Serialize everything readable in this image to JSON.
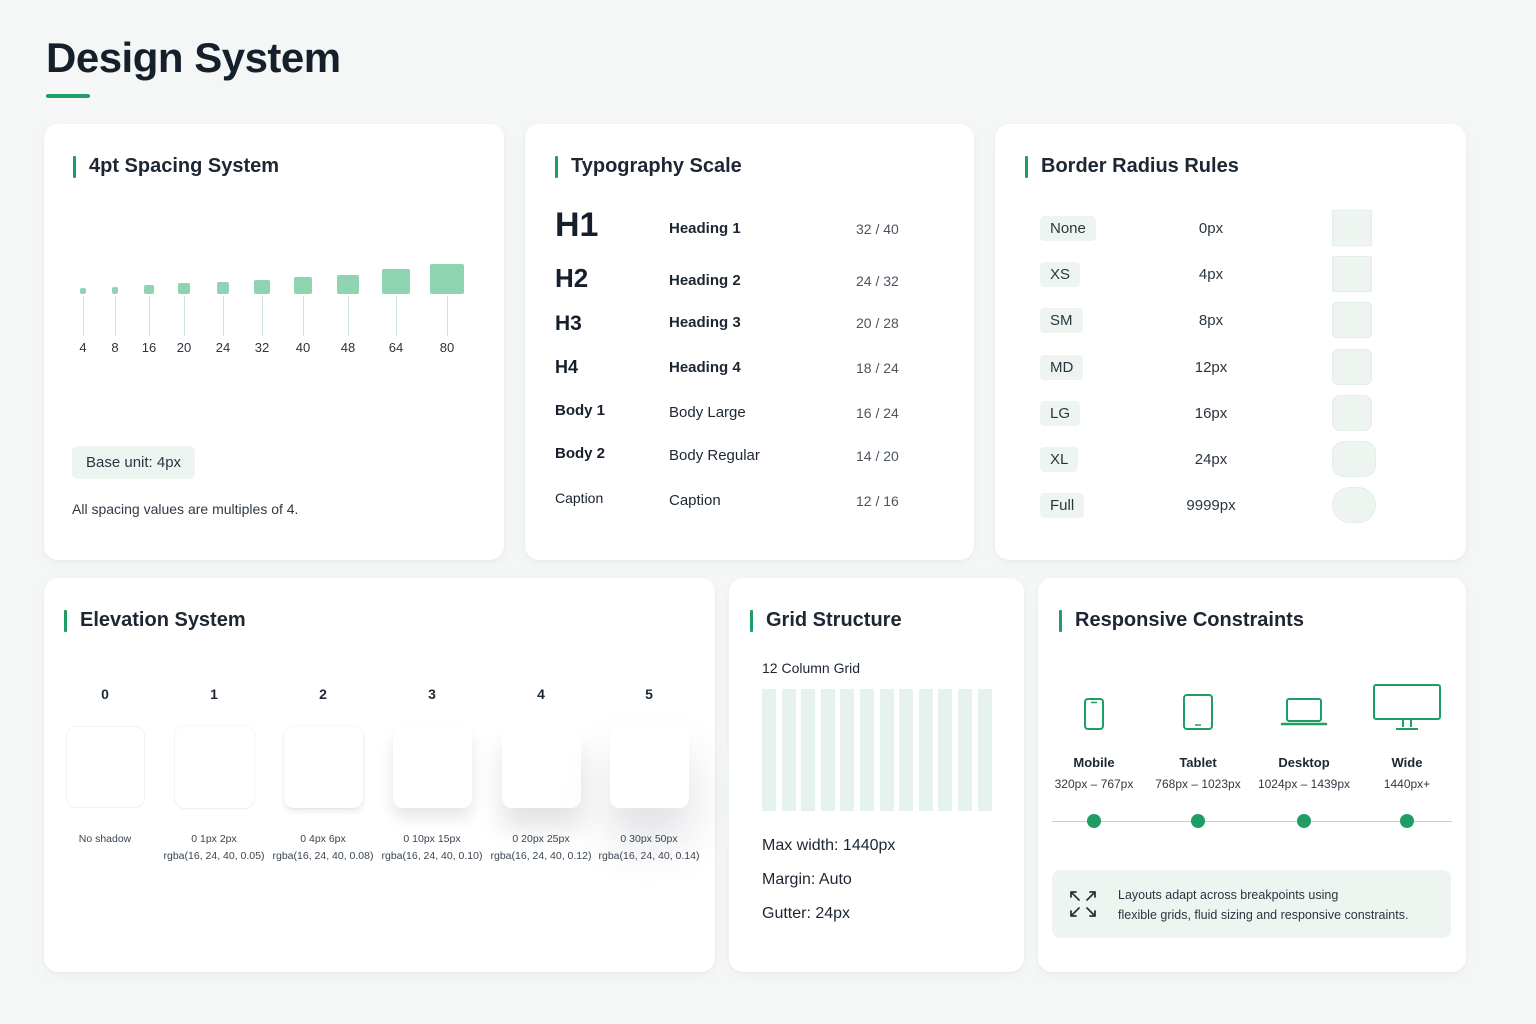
{
  "page": {
    "title": "Design System"
  },
  "spacing": {
    "title": "4pt Spacing System",
    "values": [
      "4",
      "8",
      "16",
      "20",
      "24",
      "32",
      "40",
      "48",
      "64",
      "80"
    ],
    "base_unit": "Base unit: 4px",
    "note": "All spacing values are multiples of 4."
  },
  "typography": {
    "title": "Typography Scale",
    "rows": [
      {
        "tag": "H1",
        "name": "Heading 1",
        "size": "32 / 40"
      },
      {
        "tag": "H2",
        "name": "Heading 2",
        "size": "24 / 32"
      },
      {
        "tag": "H3",
        "name": "Heading 3",
        "size": "20 / 28"
      },
      {
        "tag": "H4",
        "name": "Heading 4",
        "size": "18 / 24"
      },
      {
        "tag": "Body 1",
        "name": "Body Large",
        "size": "16 / 24"
      },
      {
        "tag": "Body 2",
        "name": "Body Regular",
        "size": "14 / 20"
      },
      {
        "tag": "Caption",
        "name": "Caption",
        "size": "12 / 16"
      }
    ]
  },
  "radius": {
    "title": "Border Radius Rules",
    "rows": [
      {
        "name": "None",
        "value": "0px"
      },
      {
        "name": "XS",
        "value": "4px"
      },
      {
        "name": "SM",
        "value": "8px"
      },
      {
        "name": "MD",
        "value": "12px"
      },
      {
        "name": "LG",
        "value": "16px"
      },
      {
        "name": "XL",
        "value": "24px"
      },
      {
        "name": "Full",
        "value": "9999px"
      }
    ]
  },
  "elevation": {
    "title": "Elevation System",
    "levels": [
      {
        "level": "0",
        "line1": "No shadow",
        "line2": ""
      },
      {
        "level": "1",
        "line1": "0 1px 2px",
        "line2": "rgba(16, 24, 40, 0.05)"
      },
      {
        "level": "2",
        "line1": "0 4px 6px",
        "line2": "rgba(16, 24, 40, 0.08)"
      },
      {
        "level": "3",
        "line1": "0 10px 15px",
        "line2": "rgba(16, 24, 40, 0.10)"
      },
      {
        "level": "4",
        "line1": "0 20px 25px",
        "line2": "rgba(16, 24, 40, 0.12)"
      },
      {
        "level": "5",
        "line1": "0 30px 50px",
        "line2": "rgba(16, 24, 40, 0.14)"
      }
    ]
  },
  "grid": {
    "title": "Grid Structure",
    "subtitle": "12 Column Grid",
    "max_width": "Max width: 1440px",
    "margin": "Margin: Auto",
    "gutter": "Gutter: 24px"
  },
  "responsive": {
    "title": "Responsive Constraints",
    "breakpoints": [
      {
        "name": "Mobile",
        "range": "320px – 767px",
        "icon": "mobile-icon"
      },
      {
        "name": "Tablet",
        "range": "768px – 1023px",
        "icon": "tablet-icon"
      },
      {
        "name": "Desktop",
        "range": "1024px – 1439px",
        "icon": "laptop-icon"
      },
      {
        "name": "Wide",
        "range": "1440px+",
        "icon": "monitor-icon"
      }
    ],
    "info_line1": "Layouts adapt across breakpoints using",
    "info_line2": "flexible grids, fluid sizing and responsive constraints."
  },
  "colors": {
    "accent": "#1f9d64",
    "accent_light": "#8fd4b0",
    "chip_bg": "#eef5f1"
  }
}
